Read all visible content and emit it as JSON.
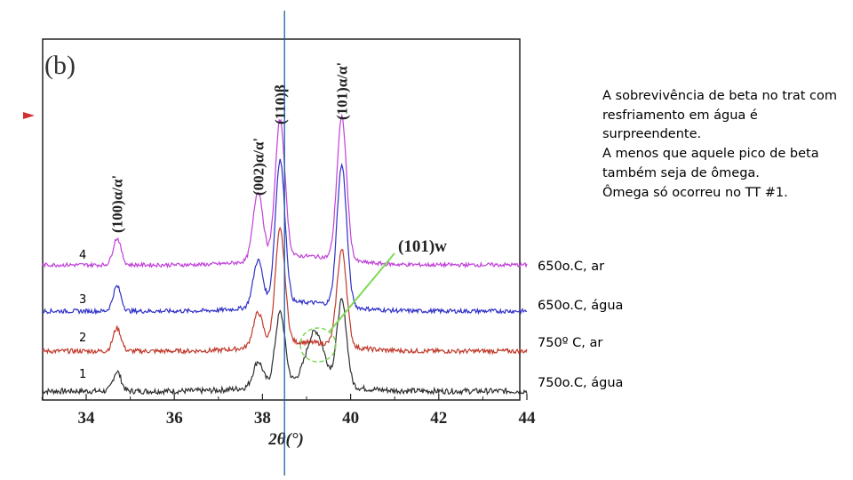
{
  "chart_data": {
    "type": "line",
    "panel_label": "(b)",
    "xlabel": "2θ(°)",
    "xlim": [
      33,
      44
    ],
    "x_ticks": [
      "34",
      "36",
      "38",
      "40",
      "42",
      "44"
    ],
    "peak_labels": [
      {
        "text": "(100)α/α'",
        "x": 34.7
      },
      {
        "text": "(002)α/α'",
        "x": 37.9
      },
      {
        "text": "(110)β",
        "x": 38.4
      },
      {
        "text": "(101)α/α'",
        "x": 39.8
      }
    ],
    "omega_label": "(101)w",
    "omega_peak_x": 39.2,
    "vertical_line_x": 38.5,
    "series": [
      {
        "name": "1",
        "condition": "750o.C, água",
        "color": "#303030",
        "peaks": [
          {
            "x": 34.7,
            "h": 22
          },
          {
            "x": 37.9,
            "h": 28
          },
          {
            "x": 38.4,
            "h": 80
          },
          {
            "x": 39.2,
            "h": 58
          },
          {
            "x": 39.8,
            "h": 95
          }
        ]
      },
      {
        "name": "2",
        "condition": "750º C, ar",
        "color": "#c0392b",
        "peaks": [
          {
            "x": 34.7,
            "h": 26
          },
          {
            "x": 37.9,
            "h": 38
          },
          {
            "x": 38.4,
            "h": 128
          },
          {
            "x": 39.8,
            "h": 108
          }
        ]
      },
      {
        "name": "3",
        "condition": "650o.C, água",
        "color": "#3030c8",
        "peaks": [
          {
            "x": 34.7,
            "h": 28
          },
          {
            "x": 37.9,
            "h": 52
          },
          {
            "x": 38.4,
            "h": 162
          },
          {
            "x": 39.8,
            "h": 158
          }
        ]
      },
      {
        "name": "4",
        "condition": "650o.C, ar",
        "color": "#c040d8",
        "peaks": [
          {
            "x": 34.7,
            "h": 30
          },
          {
            "x": 37.9,
            "h": 78
          },
          {
            "x": 38.4,
            "h": 155
          },
          {
            "x": 39.8,
            "h": 160
          }
        ]
      }
    ]
  },
  "annotation": {
    "text": "A sobrevivência de beta no trat com resfriamento em água é surpreendente.\nA menos que aquele pico de beta também seja de ômega.\nÔmega só ocorreu no TT #1."
  },
  "colors": {
    "omega_arrow": "#7ed957",
    "vertical_line": "#1f5fa8",
    "marker": "#d32f2f"
  }
}
